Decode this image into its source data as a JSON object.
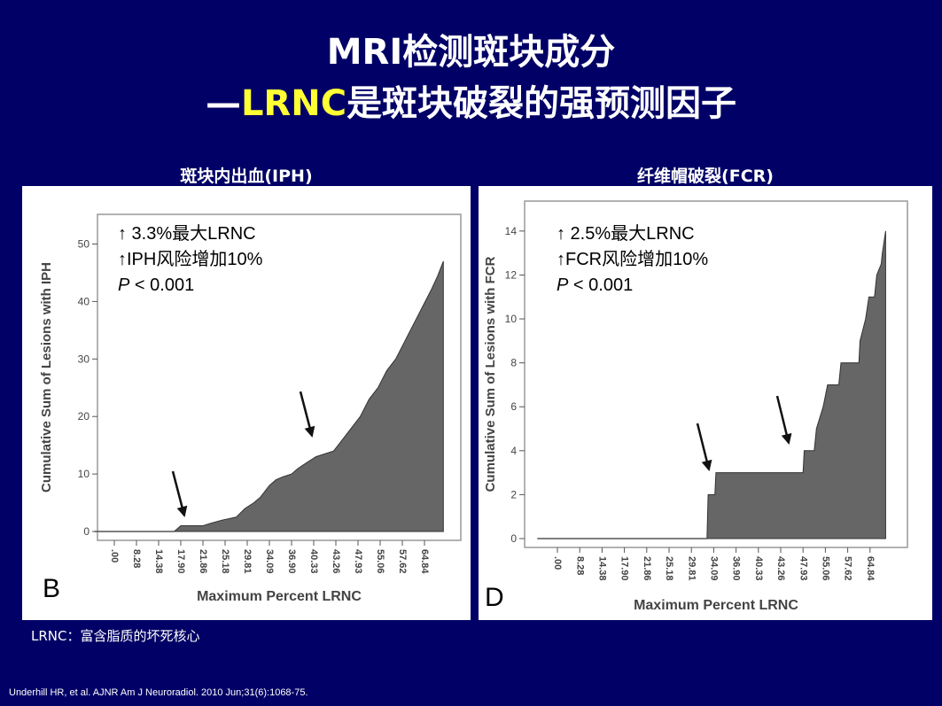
{
  "slide": {
    "title_line1": "MRI检测斑块成分",
    "title_line2_prefix": "—",
    "title_line2_highlight": "LRNC",
    "title_line2_rest": "是斑块破裂的强预测因子",
    "note": "LRNC：富含脂质的坏死核心",
    "citation": "Underhill HR, et al. AJNR Am J Neuroradiol. 2010 Jun;31(6):1068-75.",
    "colors": {
      "background": "#000066",
      "highlight": "#ffff33",
      "fill": "#666666"
    }
  },
  "panels": [
    {
      "heading": "斑块内出血(IPH)",
      "label": "B",
      "ann_line1": "↑ 3.3%最大LRNC",
      "ann_line2": "↑IPH风险增加10%",
      "ann_p": "P",
      "ann_p_rest": " < 0.001"
    },
    {
      "heading": "纤维帽破裂(FCR)",
      "label": "D",
      "ann_line1": "↑ 2.5%最大LRNC",
      "ann_line2": "↑FCR风险增加10%",
      "ann_p": "P",
      "ann_p_rest": " < 0.001"
    }
  ],
  "chart_data": [
    {
      "type": "area",
      "panel": "B",
      "xlabel": "Maximum Percent LRNC",
      "ylabel": "Cumulative Sum of Lesions with IPH",
      "x_tick_labels": [
        ".00",
        "8.28",
        "14.38",
        "17.90",
        "21.86",
        "25.18",
        "29.81",
        "34.09",
        "36.90",
        "40.33",
        "43.26",
        "47.93",
        "55.06",
        "57.62",
        "64.84"
      ],
      "y_ticks": [
        0,
        10,
        20,
        30,
        40,
        50
      ],
      "ylim": [
        0,
        53
      ],
      "x_index_range": [
        -0.8,
        14.8
      ],
      "grid": false,
      "points": [
        [
          2.7,
          0
        ],
        [
          2.85,
          0.5
        ],
        [
          3.0,
          1
        ],
        [
          4.0,
          1
        ],
        [
          4.4,
          1.5
        ],
        [
          4.9,
          2
        ],
        [
          5.5,
          2.5
        ],
        [
          5.9,
          4
        ],
        [
          6.3,
          5
        ],
        [
          6.6,
          6
        ],
        [
          7.0,
          8
        ],
        [
          7.3,
          9
        ],
        [
          7.6,
          9.5
        ],
        [
          8.0,
          10
        ],
        [
          8.3,
          11
        ],
        [
          8.7,
          12
        ],
        [
          9.1,
          13
        ],
        [
          9.5,
          13.5
        ],
        [
          9.9,
          14
        ],
        [
          10.3,
          16
        ],
        [
          10.7,
          18
        ],
        [
          11.1,
          20
        ],
        [
          11.5,
          23
        ],
        [
          11.9,
          25
        ],
        [
          12.3,
          28
        ],
        [
          12.7,
          30
        ],
        [
          13.1,
          33
        ],
        [
          13.5,
          36
        ],
        [
          13.9,
          39
        ],
        [
          14.3,
          42
        ],
        [
          14.6,
          44.5
        ],
        [
          14.85,
          47
        ]
      ],
      "annotation_arrows_x_index": [
        2.6,
        7.7
      ]
    },
    {
      "type": "area",
      "panel": "D",
      "xlabel": "Maximum Percent LRNC",
      "ylabel": "Cumulative Sum of Lesions with FCR",
      "x_tick_labels": [
        ".00",
        "8.28",
        "14.38",
        "17.90",
        "21.86",
        "25.18",
        "29.81",
        "34.09",
        "36.90",
        "40.33",
        "43.26",
        "47.93",
        "55.06",
        "57.62",
        "64.84"
      ],
      "y_ticks": [
        0,
        2,
        4,
        6,
        8,
        10,
        12,
        14
      ],
      "ylim": [
        0,
        14.8
      ],
      "x_index_range": [
        -0.8,
        14.8
      ],
      "grid": false,
      "points": [
        [
          6.7,
          0
        ],
        [
          6.75,
          2
        ],
        [
          7.05,
          2
        ],
        [
          7.1,
          3
        ],
        [
          11.0,
          3
        ],
        [
          11.05,
          4
        ],
        [
          11.5,
          4
        ],
        [
          11.6,
          5
        ],
        [
          11.9,
          6
        ],
        [
          12.1,
          7
        ],
        [
          12.6,
          7
        ],
        [
          12.7,
          8
        ],
        [
          13.5,
          8
        ],
        [
          13.55,
          9
        ],
        [
          13.8,
          10
        ],
        [
          13.95,
          11
        ],
        [
          14.2,
          11
        ],
        [
          14.3,
          12
        ],
        [
          14.5,
          12.5
        ],
        [
          14.55,
          13
        ],
        [
          14.7,
          14
        ]
      ],
      "annotation_arrows_x_index": [
        6.2,
        9.9
      ]
    }
  ]
}
